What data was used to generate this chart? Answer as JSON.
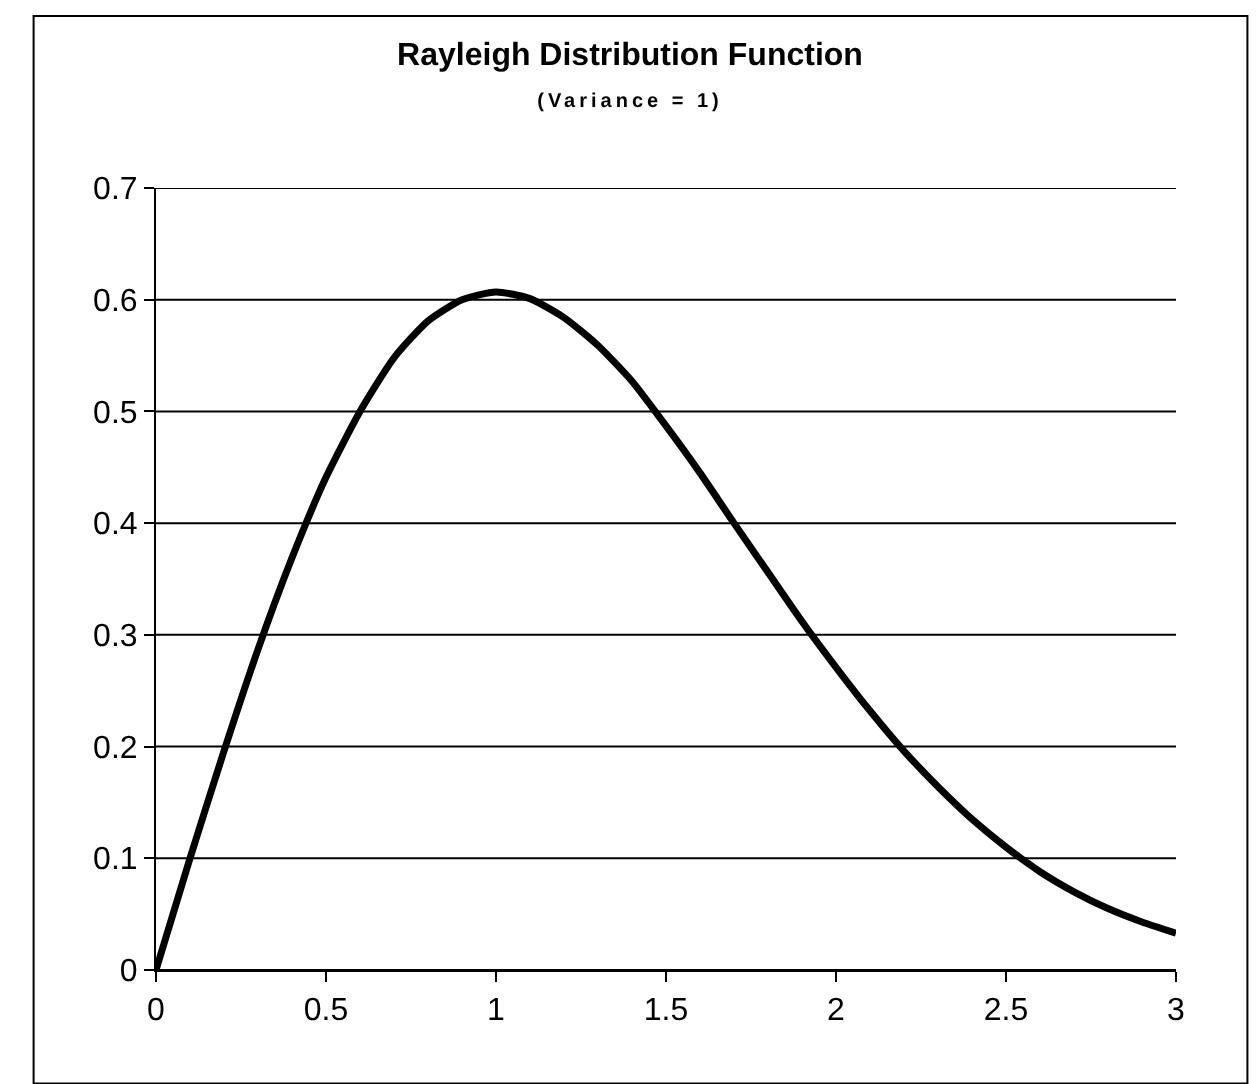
{
  "chart_data": {
    "type": "line",
    "title": "Rayleigh Distribution Function",
    "subtitle": "(Variance = 1)",
    "x": [
      0,
      0.1,
      0.2,
      0.3,
      0.4,
      0.5,
      0.6,
      0.7,
      0.8,
      0.9,
      1.0,
      1.1,
      1.2,
      1.3,
      1.4,
      1.5,
      1.6,
      1.7,
      1.8,
      1.9,
      2.0,
      2.1,
      2.2,
      2.3,
      2.4,
      2.5,
      2.6,
      2.7,
      2.8,
      2.9,
      3.0
    ],
    "series": [
      {
        "color": "#000000",
        "values": [
          0,
          0.1,
          0.196,
          0.287,
          0.369,
          0.441,
          0.5,
          0.548,
          0.581,
          0.6,
          0.607,
          0.601,
          0.584,
          0.559,
          0.527,
          0.487,
          0.445,
          0.4,
          0.356,
          0.312,
          0.271,
          0.232,
          0.196,
          0.164,
          0.135,
          0.11,
          0.088,
          0.07,
          0.055,
          0.043,
          0.033
        ]
      }
    ],
    "xlim": [
      0,
      3
    ],
    "xticks": [
      0,
      0.5,
      1,
      1.5,
      2,
      2.5,
      3
    ],
    "ylim": [
      0,
      0.7
    ],
    "yticks": [
      0,
      0.1,
      0.2,
      0.3,
      0.4,
      0.5,
      0.6,
      0.7
    ],
    "grid": "y",
    "marker": "none",
    "line_style": "solid"
  }
}
